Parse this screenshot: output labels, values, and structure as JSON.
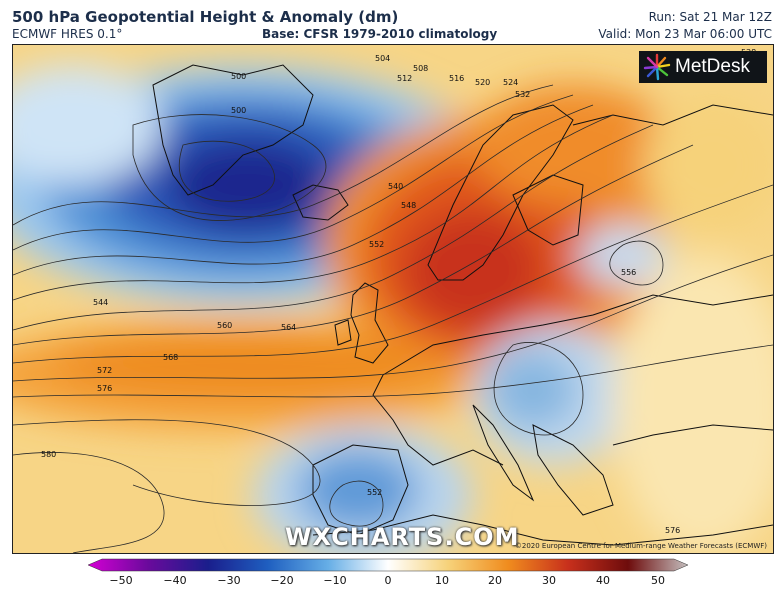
{
  "header": {
    "title": "500 hPa Geopotential Height & Anomaly (dm)",
    "model": "ECMWF HRES 0.1°",
    "base": "Base: CFSR 1979-2010 climatology",
    "run": "Run: Sat 21 Mar 12Z",
    "valid": "Valid: Mon 23 Mar 06:00 UTC"
  },
  "logo": {
    "text": "MetDesk"
  },
  "watermark": "WXCHARTS.COM",
  "credit": "©2020 European Centre for Medium-range Weather Forecasts (ECMWF)",
  "contour_labels": [
    "500",
    "504",
    "508",
    "512",
    "516",
    "520",
    "524",
    "528",
    "532",
    "540",
    "544",
    "548",
    "552",
    "556",
    "560",
    "564",
    "568",
    "572",
    "576",
    "580"
  ],
  "colorbar": {
    "ticks": [
      "−50",
      "−40",
      "−30",
      "−20",
      "−10",
      "0",
      "10",
      "20",
      "30",
      "40",
      "50"
    ],
    "colors": {
      "m50": "#d400d4",
      "m40": "#6a0a9c",
      "m30": "#1a1e8c",
      "m20": "#1f5fc0",
      "m10": "#66aee6",
      "zero": "#ffffff",
      "p10": "#f6d27a",
      "p20": "#f08c1e",
      "p30": "#c8301c",
      "p40": "#6e0c0c",
      "p50": "#c4bebe"
    }
  }
}
